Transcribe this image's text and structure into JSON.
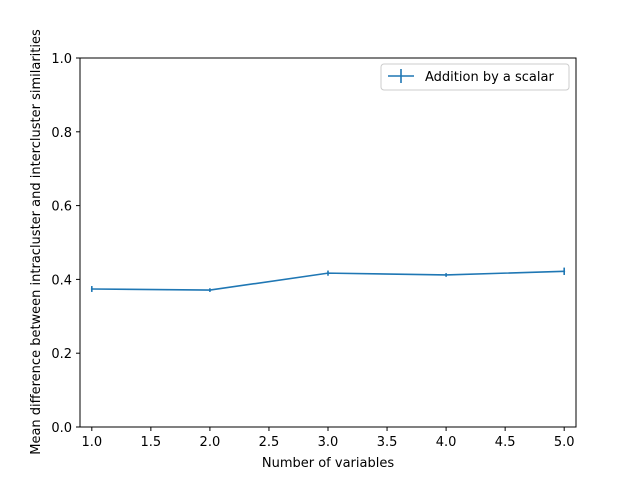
{
  "chart_data": {
    "type": "line",
    "title": "",
    "xlabel": "Number of variables",
    "ylabel": "Mean difference between intracluster and intercluster similarities",
    "xlim": [
      0.9,
      5.1
    ],
    "ylim": [
      0.0,
      1.0
    ],
    "xticks": [
      1.0,
      1.5,
      2.0,
      2.5,
      3.0,
      3.5,
      4.0,
      4.5,
      5.0
    ],
    "xtick_labels": [
      "1.0",
      "1.5",
      "2.0",
      "2.5",
      "3.0",
      "3.5",
      "4.0",
      "4.5",
      "5.0"
    ],
    "yticks": [
      0.0,
      0.2,
      0.4,
      0.6,
      0.8,
      1.0
    ],
    "ytick_labels": [
      "0.0",
      "0.2",
      "0.4",
      "0.6",
      "0.8",
      "1.0"
    ],
    "grid": false,
    "legend_position": "top-right",
    "series": [
      {
        "name": "Addition by a scalar",
        "color": "#1f77b4",
        "marker": "errorbar",
        "x": [
          1,
          2,
          3,
          4,
          5
        ],
        "y": [
          0.374,
          0.371,
          0.417,
          0.412,
          0.422
        ],
        "yerr": [
          0.008,
          0.005,
          0.007,
          0.005,
          0.01
        ]
      }
    ]
  }
}
